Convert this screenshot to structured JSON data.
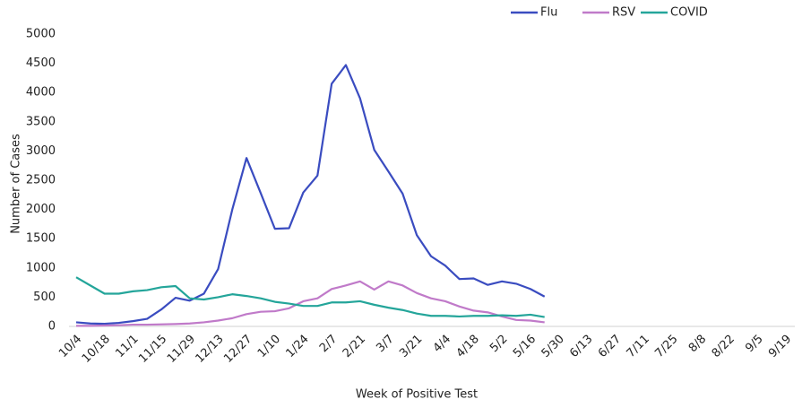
{
  "chart_data": {
    "type": "line",
    "categories": [
      "10/4",
      null,
      "10/18",
      null,
      "11/1",
      null,
      "11/15",
      null,
      "11/29",
      null,
      "12/13",
      null,
      "12/27",
      null,
      "1/10",
      null,
      "1/24",
      null,
      "2/7",
      null,
      "2/21",
      null,
      "3/7",
      null,
      "3/21",
      null,
      "4/4",
      null,
      "4/18",
      null,
      "5/2",
      null,
      "5/16",
      null,
      "5/30",
      null,
      "6/13",
      null,
      "6/27",
      null,
      "7/11",
      null,
      "7/25",
      null,
      "8/8",
      null,
      "8/22",
      null,
      "9/5",
      null,
      "9/19"
    ],
    "series": [
      {
        "name": "Flu",
        "color": "#3a4cc0",
        "values": [
          70,
          50,
          45,
          60,
          90,
          130,
          290,
          490,
          440,
          560,
          980,
          2000,
          2880,
          2280,
          1670,
          1680,
          2290,
          2580,
          4150,
          4470,
          3900,
          3020,
          2650,
          2270,
          1560,
          1200,
          1040,
          810,
          820,
          710,
          770,
          730,
          640,
          510,
          null,
          null,
          null,
          null,
          null,
          null,
          null,
          null,
          null,
          null,
          null,
          null,
          null,
          null,
          null,
          null,
          null
        ]
      },
      {
        "name": "RSV",
        "color": "#c07ac9",
        "values": [
          10,
          10,
          15,
          20,
          30,
          30,
          35,
          40,
          50,
          70,
          100,
          140,
          210,
          250,
          260,
          310,
          430,
          480,
          640,
          700,
          770,
          630,
          770,
          700,
          570,
          480,
          430,
          340,
          270,
          240,
          170,
          110,
          100,
          70,
          null,
          null,
          null,
          null,
          null,
          null,
          null,
          null,
          null,
          null,
          null,
          null,
          null,
          null,
          null,
          null,
          null
        ]
      },
      {
        "name": "COVID",
        "color": "#24a59a",
        "values": [
          840,
          700,
          560,
          560,
          600,
          620,
          670,
          690,
          480,
          460,
          500,
          550,
          520,
          480,
          420,
          390,
          350,
          350,
          410,
          410,
          430,
          370,
          320,
          280,
          220,
          180,
          180,
          170,
          180,
          180,
          190,
          180,
          200,
          160,
          null,
          null,
          null,
          null,
          null,
          null,
          null,
          null,
          null,
          null,
          null,
          null,
          null,
          null,
          null,
          null,
          null
        ]
      }
    ],
    "ylim": [
      0,
      5000
    ],
    "yticks": [
      0,
      500,
      1000,
      1500,
      2000,
      2500,
      3000,
      3500,
      4000,
      4500,
      5000
    ],
    "y_label": "Number of Cases",
    "x_label": "Week of Positive Test",
    "legend": "top-right",
    "grid": false
  }
}
